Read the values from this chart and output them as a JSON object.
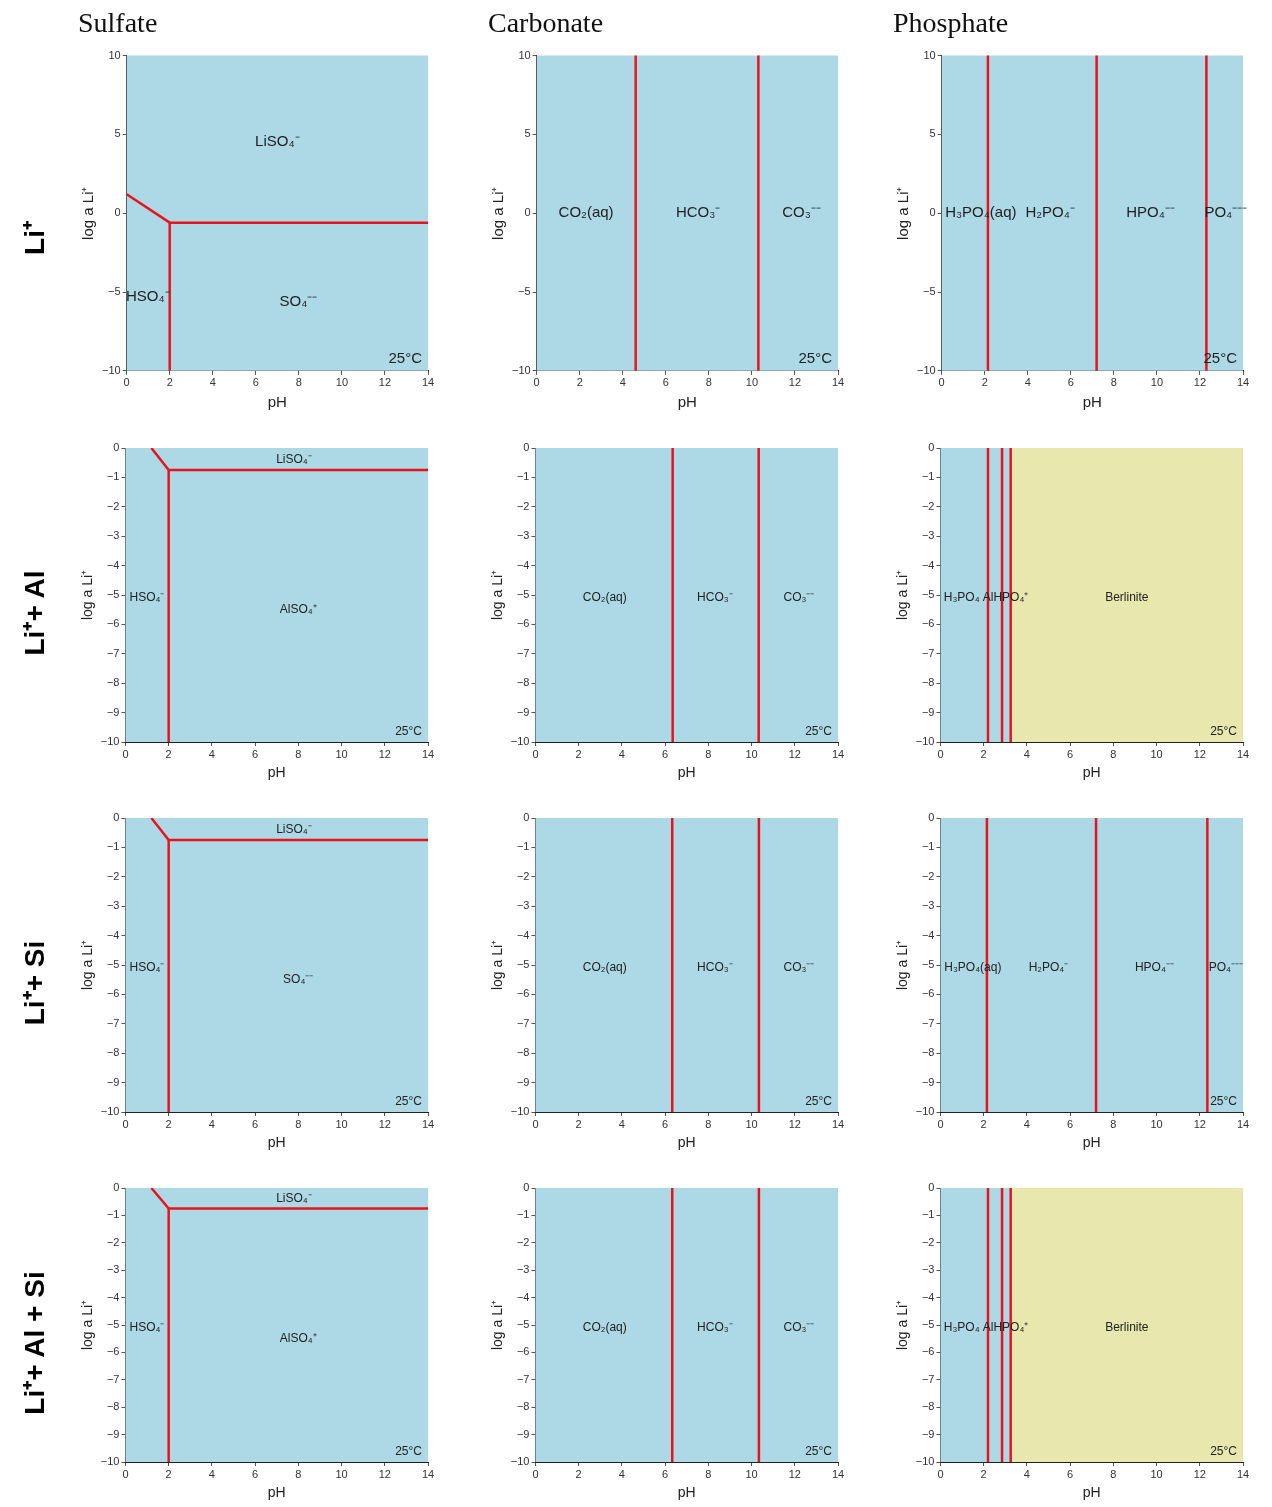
{
  "chart_data": [
    {
      "type": "line",
      "title": "Sulfate",
      "subtitle": "Li⁺",
      "xlabel": "pH",
      "ylabel": "log a Li⁺",
      "xlim": [
        0,
        14
      ],
      "xticks": [
        0,
        2,
        4,
        6,
        8,
        10,
        12,
        14
      ],
      "ylim": [
        -10,
        10
      ],
      "yticks": [
        -10,
        -5,
        0,
        5,
        10
      ],
      "legend": false,
      "grid": false,
      "marker": "none",
      "line_style": "solid",
      "series": [
        {
          "color": "#e8141c",
          "x": [
            0,
            2,
            14
          ],
          "values": [
            1.2,
            -0.6,
            -0.6
          ]
        },
        {
          "color": "#e8141c",
          "x": [
            2,
            2
          ],
          "values": [
            -0.6,
            -10
          ]
        }
      ],
      "annotations": [
        "LiSO₄⁻",
        "HSO₄⁻",
        "SO₄⁻⁻",
        "25°C"
      ]
    },
    {
      "type": "line",
      "title": "Carbonate",
      "xlabel": "pH",
      "ylabel": "log a Li⁺",
      "xlim": [
        0,
        14
      ],
      "xticks": [
        0,
        2,
        4,
        6,
        8,
        10,
        12,
        14
      ],
      "ylim": [
        -10,
        10
      ],
      "yticks": [
        -10,
        -5,
        0,
        5,
        10
      ],
      "legend": false,
      "grid": false,
      "marker": "none",
      "line_style": "solid",
      "series": [
        {
          "color": "#e8141c",
          "x": [
            4.6,
            4.6
          ],
          "values": [
            10,
            -10
          ]
        },
        {
          "color": "#e8141c",
          "x": [
            10.3,
            10.3
          ],
          "values": [
            10,
            -10
          ]
        }
      ],
      "annotations": [
        "CO₂(aq)",
        "HCO₃⁻",
        "CO₃⁻⁻",
        "25°C"
      ]
    },
    {
      "type": "line",
      "title": "Phosphate",
      "xlabel": "pH",
      "ylabel": "log a Li⁺",
      "xlim": [
        0,
        14
      ],
      "xticks": [
        0,
        2,
        4,
        6,
        8,
        10,
        12,
        14
      ],
      "ylim": [
        -10,
        10
      ],
      "yticks": [
        -10,
        -5,
        0,
        5,
        10
      ],
      "legend": false,
      "grid": false,
      "marker": "none",
      "line_style": "solid",
      "series": [
        {
          "color": "#e8141c",
          "x": [
            2.15,
            2.15
          ],
          "values": [
            10,
            -10
          ]
        },
        {
          "color": "#e8141c",
          "x": [
            7.2,
            7.2
          ],
          "values": [
            10,
            -10
          ]
        },
        {
          "color": "#e8141c",
          "x": [
            12.3,
            12.3
          ],
          "values": [
            10,
            -10
          ]
        }
      ],
      "annotations": [
        "H₃PO₄(aq)",
        "H₂PO₄⁻",
        "HPO₄⁻⁻",
        "PO₄⁻⁻⁻",
        "25°C"
      ]
    },
    {
      "type": "line",
      "subtitle": "Li⁺+ Al",
      "xlabel": "pH",
      "ylabel": "log a Li⁺",
      "xlim": [
        0,
        14
      ],
      "xticks": [
        0,
        2,
        4,
        6,
        8,
        10,
        12,
        14
      ],
      "ylim": [
        -10,
        0
      ],
      "yticks": [
        -10,
        -9,
        -8,
        -7,
        -6,
        -5,
        -4,
        -3,
        -2,
        -1,
        0
      ],
      "legend": false,
      "grid": false,
      "marker": "none",
      "line_style": "solid",
      "series": [
        {
          "color": "#e8141c",
          "x": [
            1.2,
            2,
            14
          ],
          "values": [
            0,
            -0.75,
            -0.75
          ]
        },
        {
          "color": "#e8141c",
          "x": [
            2,
            2
          ],
          "values": [
            -0.75,
            -10
          ]
        }
      ],
      "annotations": [
        "LiSO₄⁻",
        "HSO₄⁻",
        "AlSO₄⁺",
        "25°C"
      ]
    },
    {
      "type": "line",
      "xlabel": "pH",
      "ylabel": "log a Li⁺",
      "xlim": [
        0,
        14
      ],
      "xticks": [
        0,
        2,
        4,
        6,
        8,
        10,
        12,
        14
      ],
      "ylim": [
        -10,
        0
      ],
      "yticks": [
        -10,
        -9,
        -8,
        -7,
        -6,
        -5,
        -4,
        -3,
        -2,
        -1,
        0
      ],
      "legend": false,
      "grid": false,
      "marker": "none",
      "line_style": "solid",
      "series": [
        {
          "color": "#e8141c",
          "x": [
            6.35,
            6.35
          ],
          "values": [
            0,
            -10
          ]
        },
        {
          "color": "#e8141c",
          "x": [
            10.33,
            10.33
          ],
          "values": [
            0,
            -10
          ]
        }
      ],
      "annotations": [
        "CO₂(aq)",
        "HCO₃⁻",
        "CO₃⁻⁻",
        "25°C"
      ]
    },
    {
      "type": "line",
      "xlabel": "pH",
      "ylabel": "log a Li⁺",
      "xlim": [
        0,
        14
      ],
      "xticks": [
        0,
        2,
        4,
        6,
        8,
        10,
        12,
        14
      ],
      "ylim": [
        -10,
        0
      ],
      "yticks": [
        -10,
        -9,
        -8,
        -7,
        -6,
        -5,
        -4,
        -3,
        -2,
        -1,
        0
      ],
      "legend": false,
      "grid": false,
      "marker": "none",
      "line_style": "solid",
      "bands": [
        {
          "axis": "x",
          "from": 0,
          "to": 3.25,
          "color": "#add8e6"
        },
        {
          "axis": "x",
          "from": 3.25,
          "to": 14,
          "label": "Berlinite",
          "color": "#e8e8ae"
        }
      ],
      "series": [
        {
          "color": "#e8141c",
          "x": [
            2.2,
            2.2
          ],
          "values": [
            0,
            -10
          ]
        },
        {
          "color": "#e8141c",
          "x": [
            2.85,
            2.85
          ],
          "values": [
            0,
            -10
          ]
        },
        {
          "color": "#e8141c",
          "x": [
            3.25,
            3.25
          ],
          "values": [
            0,
            -10
          ]
        }
      ],
      "annotations": [
        "H₃PO₄",
        "AlHPO₄⁺",
        "25°C"
      ]
    },
    {
      "type": "line",
      "subtitle": "Li⁺+ Si",
      "xlabel": "pH",
      "ylabel": "log a Li⁺",
      "xlim": [
        0,
        14
      ],
      "xticks": [
        0,
        2,
        4,
        6,
        8,
        10,
        12,
        14
      ],
      "ylim": [
        -10,
        0
      ],
      "yticks": [
        -10,
        -9,
        -8,
        -7,
        -6,
        -5,
        -4,
        -3,
        -2,
        -1,
        0
      ],
      "legend": false,
      "grid": false,
      "marker": "none",
      "line_style": "solid",
      "series": [
        {
          "color": "#e8141c",
          "x": [
            1.2,
            2,
            14
          ],
          "values": [
            0,
            -0.75,
            -0.75
          ]
        },
        {
          "color": "#e8141c",
          "x": [
            2,
            2
          ],
          "values": [
            -0.75,
            -10
          ]
        }
      ],
      "annotations": [
        "LiSO₄⁻",
        "HSO₄⁻",
        "SO₄⁻⁻",
        "25°C"
      ]
    },
    {
      "type": "line",
      "xlabel": "pH",
      "ylabel": "log a Li⁺",
      "xlim": [
        0,
        14
      ],
      "xticks": [
        0,
        2,
        4,
        6,
        8,
        10,
        12,
        14
      ],
      "ylim": [
        -10,
        0
      ],
      "yticks": [
        -10,
        -9,
        -8,
        -7,
        -6,
        -5,
        -4,
        -3,
        -2,
        -1,
        0
      ],
      "legend": false,
      "grid": false,
      "marker": "none",
      "line_style": "solid",
      "series": [
        {
          "color": "#e8141c",
          "x": [
            6.33,
            6.33
          ],
          "values": [
            0,
            -10
          ]
        },
        {
          "color": "#e8141c",
          "x": [
            10.34,
            10.34
          ],
          "values": [
            0,
            -10
          ]
        }
      ],
      "annotations": [
        "CO₂(aq)",
        "HCO₃⁻",
        "CO₃⁻⁻",
        "25°C"
      ]
    },
    {
      "type": "line",
      "xlabel": "pH",
      "ylabel": "log a Li⁺",
      "xlim": [
        0,
        14
      ],
      "xticks": [
        0,
        2,
        4,
        6,
        8,
        10,
        12,
        14
      ],
      "ylim": [
        -10,
        0
      ],
      "yticks": [
        -10,
        -9,
        -8,
        -7,
        -6,
        -5,
        -4,
        -3,
        -2,
        -1,
        0
      ],
      "legend": false,
      "grid": false,
      "marker": "none",
      "line_style": "solid",
      "series": [
        {
          "color": "#e8141c",
          "x": [
            2.15,
            2.15
          ],
          "values": [
            0,
            -10
          ]
        },
        {
          "color": "#e8141c",
          "x": [
            7.2,
            7.2
          ],
          "values": [
            0,
            -10
          ]
        },
        {
          "color": "#e8141c",
          "x": [
            12.35,
            12.35
          ],
          "values": [
            0,
            -10
          ]
        }
      ],
      "annotations": [
        "H₃PO₄(aq)",
        "H₂PO₄⁻",
        "HPO₄⁻⁻",
        "PO₄⁻⁻⁻",
        "25°C"
      ]
    },
    {
      "type": "line",
      "subtitle": "Li⁺+ Al + Si",
      "xlabel": "pH",
      "ylabel": "log a Li⁺",
      "xlim": [
        0,
        14
      ],
      "xticks": [
        0,
        2,
        4,
        6,
        8,
        10,
        12,
        14
      ],
      "ylim": [
        -10,
        0
      ],
      "yticks": [
        -10,
        -9,
        -8,
        -7,
        -6,
        -5,
        -4,
        -3,
        -2,
        -1,
        0
      ],
      "legend": false,
      "grid": false,
      "marker": "none",
      "line_style": "solid",
      "series": [
        {
          "color": "#e8141c",
          "x": [
            1.2,
            2,
            14
          ],
          "values": [
            0,
            -0.75,
            -0.75
          ]
        },
        {
          "color": "#e8141c",
          "x": [
            2,
            2
          ],
          "values": [
            -0.75,
            -10
          ]
        }
      ],
      "annotations": [
        "LiSO₄⁻",
        "HSO₄⁻",
        "AlSO₄⁺",
        "25°C"
      ]
    },
    {
      "type": "line",
      "xlabel": "pH",
      "ylabel": "log a Li⁺",
      "xlim": [
        0,
        14
      ],
      "xticks": [
        0,
        2,
        4,
        6,
        8,
        10,
        12,
        14
      ],
      "ylim": [
        -10,
        0
      ],
      "yticks": [
        -10,
        -9,
        -8,
        -7,
        -6,
        -5,
        -4,
        -3,
        -2,
        -1,
        0
      ],
      "legend": false,
      "grid": false,
      "marker": "none",
      "line_style": "solid",
      "series": [
        {
          "color": "#e8141c",
          "x": [
            6.33,
            6.33
          ],
          "values": [
            0,
            -10
          ]
        },
        {
          "color": "#e8141c",
          "x": [
            10.34,
            10.34
          ],
          "values": [
            0,
            -10
          ]
        }
      ],
      "annotations": [
        "CO₂(aq)",
        "HCO₃⁻",
        "CO₃⁻⁻",
        "25°C"
      ]
    },
    {
      "type": "line",
      "xlabel": "pH",
      "ylabel": "log a Li⁺",
      "xlim": [
        0,
        14
      ],
      "xticks": [
        0,
        2,
        4,
        6,
        8,
        10,
        12,
        14
      ],
      "ylim": [
        -10,
        0
      ],
      "yticks": [
        -10,
        -9,
        -8,
        -7,
        -6,
        -5,
        -4,
        -3,
        -2,
        -1,
        0
      ],
      "legend": false,
      "grid": false,
      "marker": "none",
      "line_style": "solid",
      "bands": [
        {
          "axis": "x",
          "from": 0,
          "to": 3.25,
          "color": "#add8e6"
        },
        {
          "axis": "x",
          "from": 3.25,
          "to": 14,
          "label": "Berlinite",
          "color": "#e8e8ae"
        }
      ],
      "series": [
        {
          "color": "#e8141c",
          "x": [
            2.2,
            2.2
          ],
          "values": [
            0,
            -10
          ]
        },
        {
          "color": "#e8141c",
          "x": [
            2.85,
            2.85
          ],
          "values": [
            0,
            -10
          ]
        },
        {
          "color": "#e8141c",
          "x": [
            3.25,
            3.25
          ],
          "values": [
            0,
            -10
          ]
        }
      ],
      "annotations": [
        "H₃PO₄",
        "AlHPO₄⁺",
        "25°C"
      ]
    }
  ]
}
